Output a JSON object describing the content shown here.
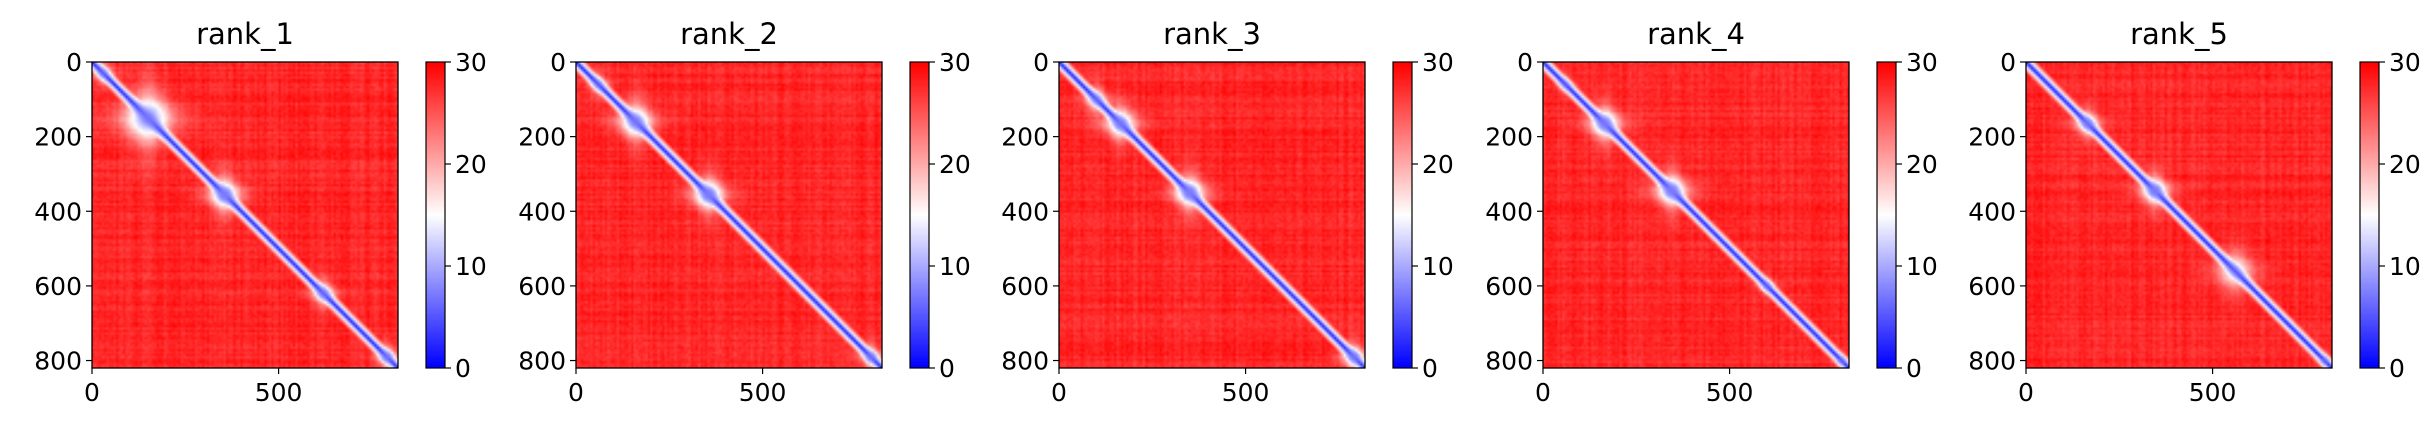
{
  "chart_data": {
    "type": "heatmap",
    "description_kind": "predicted aligned error matrices",
    "colormap": {
      "stops": [
        "#0000ff",
        "#ffffff",
        "#ff0000"
      ],
      "vmin": 0,
      "vmax": 30
    },
    "shared_axes": {
      "x_ticks": [
        0,
        500
      ],
      "x_tick_labels": [
        "0",
        "500"
      ],
      "y_ticks": [
        0,
        200,
        400,
        600,
        800
      ],
      "y_tick_labels": [
        "0",
        "200",
        "400",
        "600",
        "800"
      ],
      "colorbar_ticks": [
        0,
        10,
        20,
        30
      ],
      "colorbar_tick_labels": [
        "0",
        "10",
        "20",
        "30"
      ],
      "matrix_size": 820
    },
    "panels": [
      {
        "title": "rank_1",
        "low_error_blocks": [
          {
            "center": 30,
            "halfwidth": 25,
            "strength": 0.55
          },
          {
            "center": 150,
            "halfwidth": 65,
            "strength": 0.85
          },
          {
            "center": 355,
            "halfwidth": 40,
            "strength": 0.95
          },
          {
            "center": 620,
            "halfwidth": 30,
            "strength": 0.7
          },
          {
            "center": 790,
            "halfwidth": 25,
            "strength": 0.8
          }
        ]
      },
      {
        "title": "rank_2",
        "low_error_blocks": [
          {
            "center": 60,
            "halfwidth": 25,
            "strength": 0.5
          },
          {
            "center": 160,
            "halfwidth": 45,
            "strength": 0.85
          },
          {
            "center": 355,
            "halfwidth": 40,
            "strength": 0.95
          },
          {
            "center": 790,
            "halfwidth": 25,
            "strength": 0.75
          }
        ]
      },
      {
        "title": "rank_3",
        "low_error_blocks": [
          {
            "center": 100,
            "halfwidth": 30,
            "strength": 0.6
          },
          {
            "center": 165,
            "halfwidth": 40,
            "strength": 0.85
          },
          {
            "center": 350,
            "halfwidth": 40,
            "strength": 0.95
          },
          {
            "center": 790,
            "halfwidth": 30,
            "strength": 0.8
          }
        ]
      },
      {
        "title": "rank_4",
        "low_error_blocks": [
          {
            "center": 60,
            "halfwidth": 20,
            "strength": 0.4
          },
          {
            "center": 165,
            "halfwidth": 40,
            "strength": 0.9
          },
          {
            "center": 345,
            "halfwidth": 40,
            "strength": 0.95
          },
          {
            "center": 600,
            "halfwidth": 20,
            "strength": 0.5
          },
          {
            "center": 800,
            "halfwidth": 15,
            "strength": 0.6
          }
        ]
      },
      {
        "title": "rank_5",
        "low_error_blocks": [
          {
            "center": 165,
            "halfwidth": 30,
            "strength": 0.8
          },
          {
            "center": 345,
            "halfwidth": 35,
            "strength": 0.95
          },
          {
            "center": 560,
            "halfwidth": 50,
            "strength": 0.55
          },
          {
            "center": 800,
            "halfwidth": 15,
            "strength": 0.6
          }
        ]
      }
    ]
  }
}
